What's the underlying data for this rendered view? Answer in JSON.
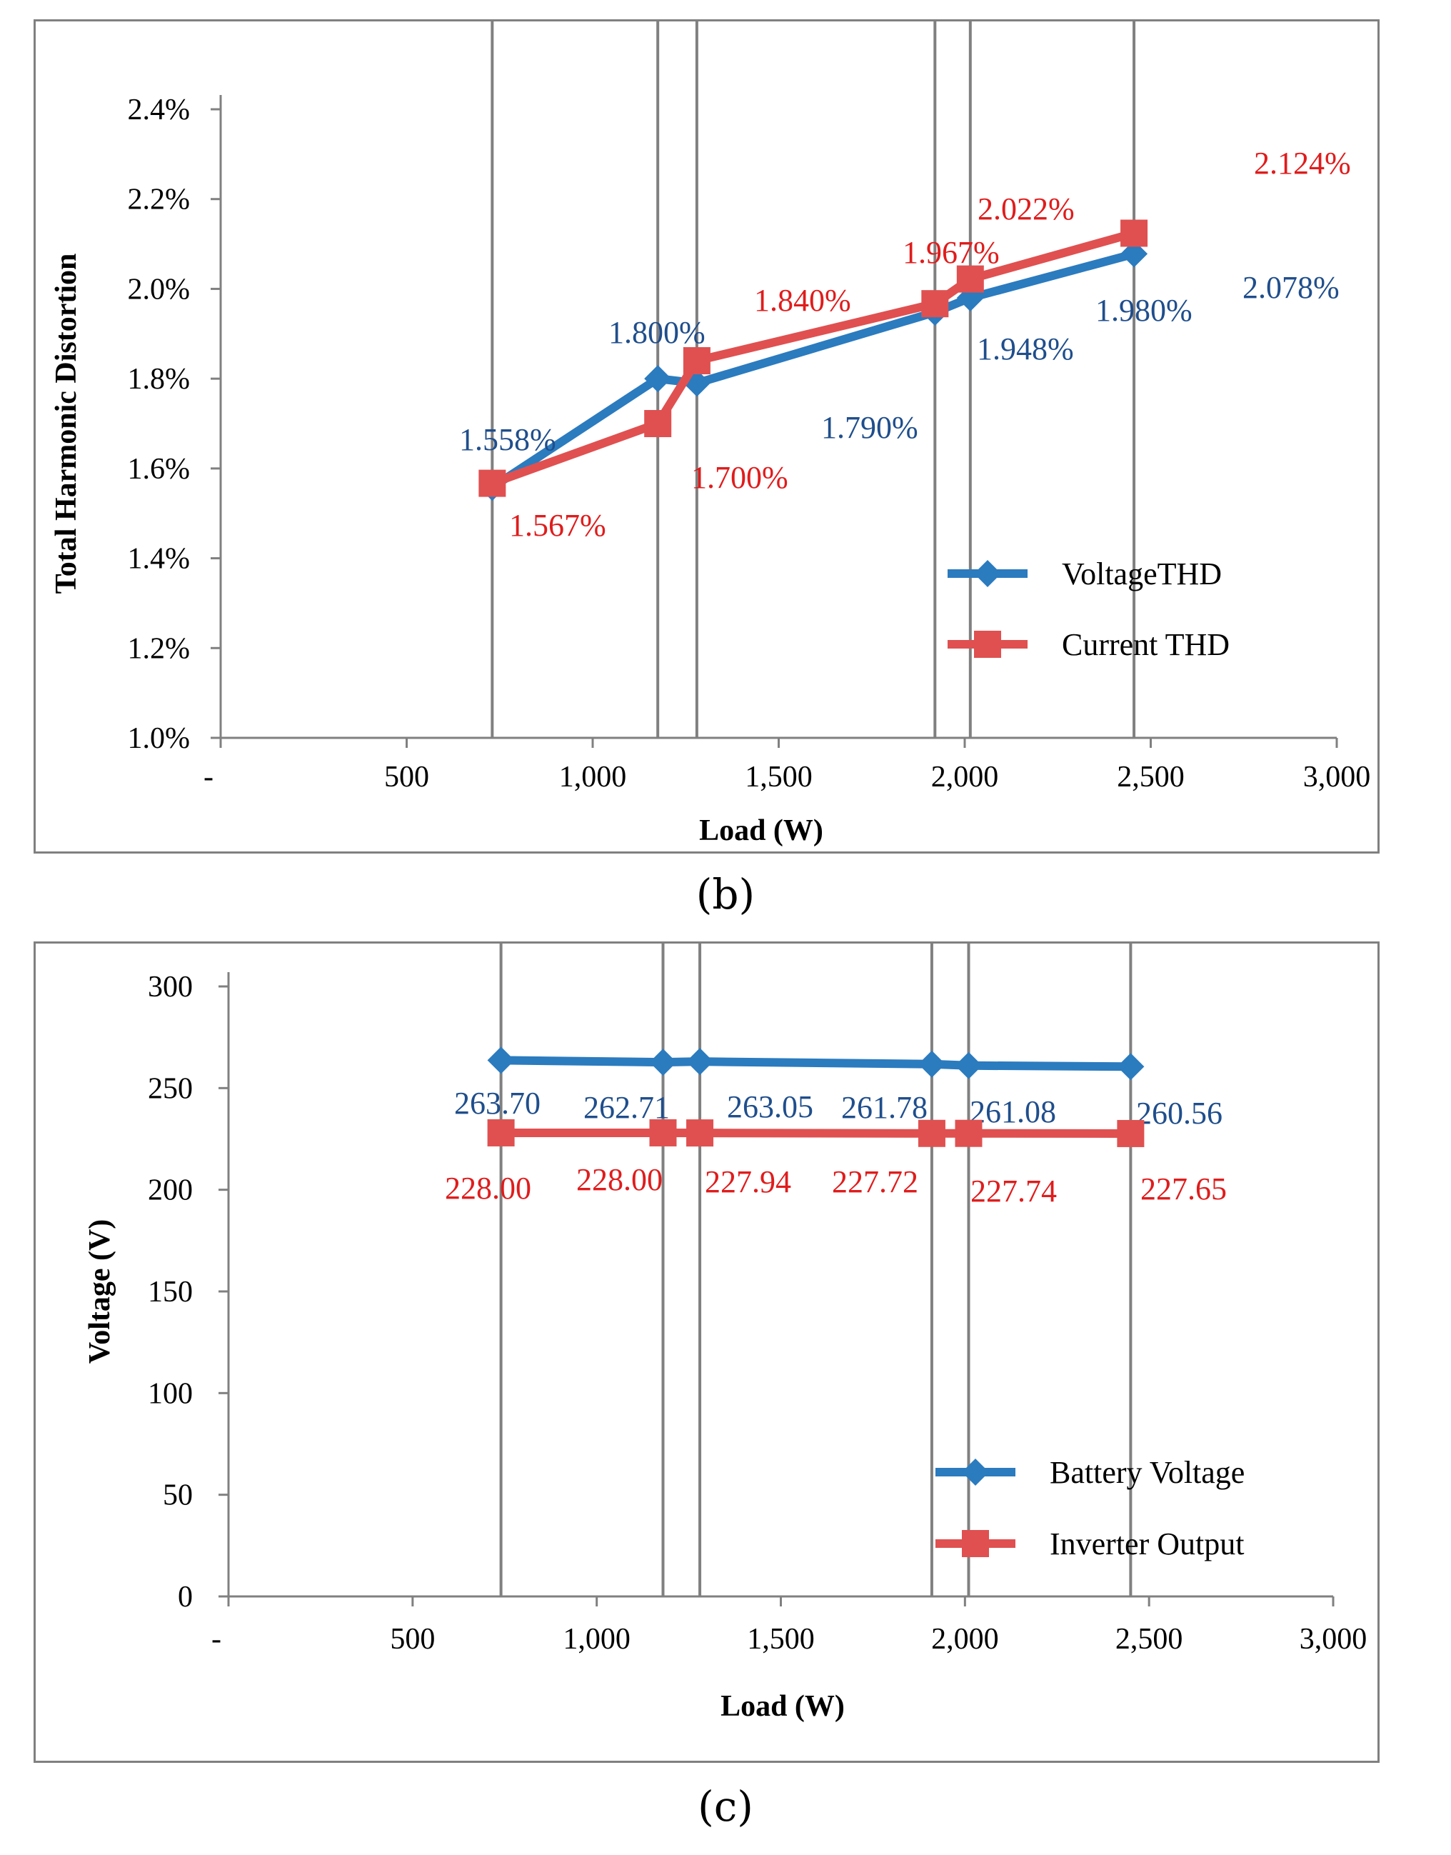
{
  "chart_data": [
    {
      "type": "line",
      "panel": "b",
      "title": "",
      "xlabel": "Load (W)",
      "ylabel": "Total Harmonic Distortion",
      "xlim": [
        0,
        3000
      ],
      "ylim": [
        1.0,
        2.4
      ],
      "x_ticks": [
        0,
        500,
        1000,
        1500,
        2000,
        2500,
        3000
      ],
      "x_tick_labels": [
        "-",
        "500",
        "1,000",
        "1,500",
        "2,000",
        "2,500",
        "3,000"
      ],
      "y_ticks": [
        1.0,
        1.2,
        1.4,
        1.6,
        1.8,
        2.0,
        2.2,
        2.4
      ],
      "y_tick_labels": [
        "1.0%",
        "1.2%",
        "1.4%",
        "1.6%",
        "1.8%",
        "2.0%",
        "2.2%",
        "2.4%"
      ],
      "vertical_lines": [
        730,
        1175,
        1280,
        1920,
        2015,
        2455
      ],
      "legend_position": "lower-right",
      "series": [
        {
          "name": "VoltageTHD",
          "color": "#2B7BBF",
          "label_color": "#1F4E8C",
          "marker": "diamond",
          "x": [
            730,
            1175,
            1280,
            1920,
            2015,
            2455
          ],
          "values": [
            1.558,
            1.8,
            1.79,
            1.948,
            1.98,
            2.078
          ],
          "labels": [
            "1.558%",
            "1.800%",
            "1.790%",
            "1.948%",
            "1.980%",
            "2.078%"
          ]
        },
        {
          "name": "Current THD",
          "color": "#E05050",
          "label_color": "#E01C1C",
          "marker": "square",
          "x": [
            730,
            1175,
            1280,
            1920,
            2015,
            2455
          ],
          "values": [
            1.567,
            1.7,
            1.84,
            1.967,
            2.022,
            2.124
          ],
          "labels": [
            "1.567%",
            "1.700%",
            "1.840%",
            "1.967%",
            "2.022%",
            "2.124%"
          ]
        }
      ]
    },
    {
      "type": "line",
      "panel": "c",
      "title": "",
      "xlabel": "Load (W)",
      "ylabel": "Voltage (V)",
      "xlim": [
        0,
        3000
      ],
      "ylim": [
        0,
        300
      ],
      "x_ticks": [
        0,
        500,
        1000,
        1500,
        2000,
        2500,
        3000
      ],
      "x_tick_labels": [
        "-",
        "500",
        "1,000",
        "1,500",
        "2,000",
        "2,500",
        "3,000"
      ],
      "y_ticks": [
        0,
        50,
        100,
        150,
        200,
        250,
        300
      ],
      "y_tick_labels": [
        "0",
        "50",
        "100",
        "150",
        "200",
        "250",
        "300"
      ],
      "vertical_lines": [
        740,
        1180,
        1280,
        1910,
        2010,
        2450
      ],
      "legend_position": "lower-right",
      "series": [
        {
          "name": "Battery Voltage",
          "color": "#2B7BBF",
          "label_color": "#1F4E8C",
          "marker": "diamond",
          "x": [
            740,
            1180,
            1280,
            1910,
            2010,
            2450
          ],
          "values": [
            263.7,
            262.71,
            263.05,
            261.78,
            261.08,
            260.56
          ],
          "labels": [
            "263.70",
            "262.71",
            "263.05",
            "261.78",
            "261.08",
            "260.56"
          ]
        },
        {
          "name": "Inverter Output",
          "color": "#E05050",
          "label_color": "#E01C1C",
          "marker": "square",
          "x": [
            740,
            1180,
            1280,
            1910,
            2010,
            2450
          ],
          "values": [
            228.0,
            228.0,
            227.94,
            227.72,
            227.74,
            227.65
          ],
          "labels": [
            "228.00",
            "228.00",
            "227.94",
            "227.72",
            "227.74",
            "227.65"
          ]
        }
      ]
    }
  ],
  "captions": {
    "b": "(b)",
    "c": "(c)"
  }
}
